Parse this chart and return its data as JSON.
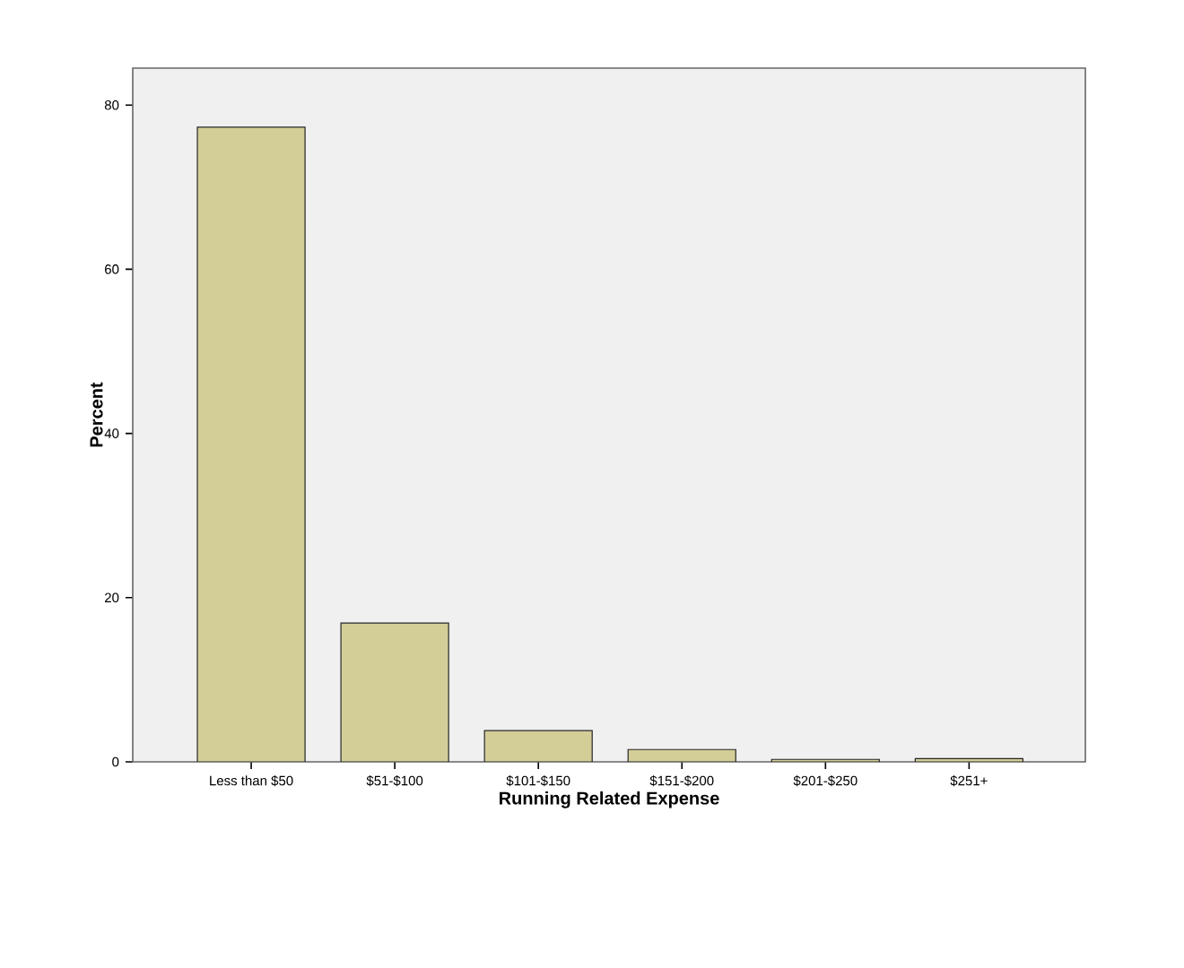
{
  "chart_data": {
    "type": "bar",
    "xlabel": "Running Related Expense",
    "ylabel": "Percent",
    "categories": [
      "Less than $50",
      "$51-$100",
      "$101-$150",
      "$151-$200",
      "$201-$250",
      "$251+"
    ],
    "values": [
      77.3,
      16.9,
      3.8,
      1.5,
      0.3,
      0.4
    ],
    "color": "#d3ce98",
    "ylim": [
      0,
      84.5
    ],
    "yticks": [
      0,
      20,
      40,
      60,
      80
    ],
    "grid": false
  }
}
